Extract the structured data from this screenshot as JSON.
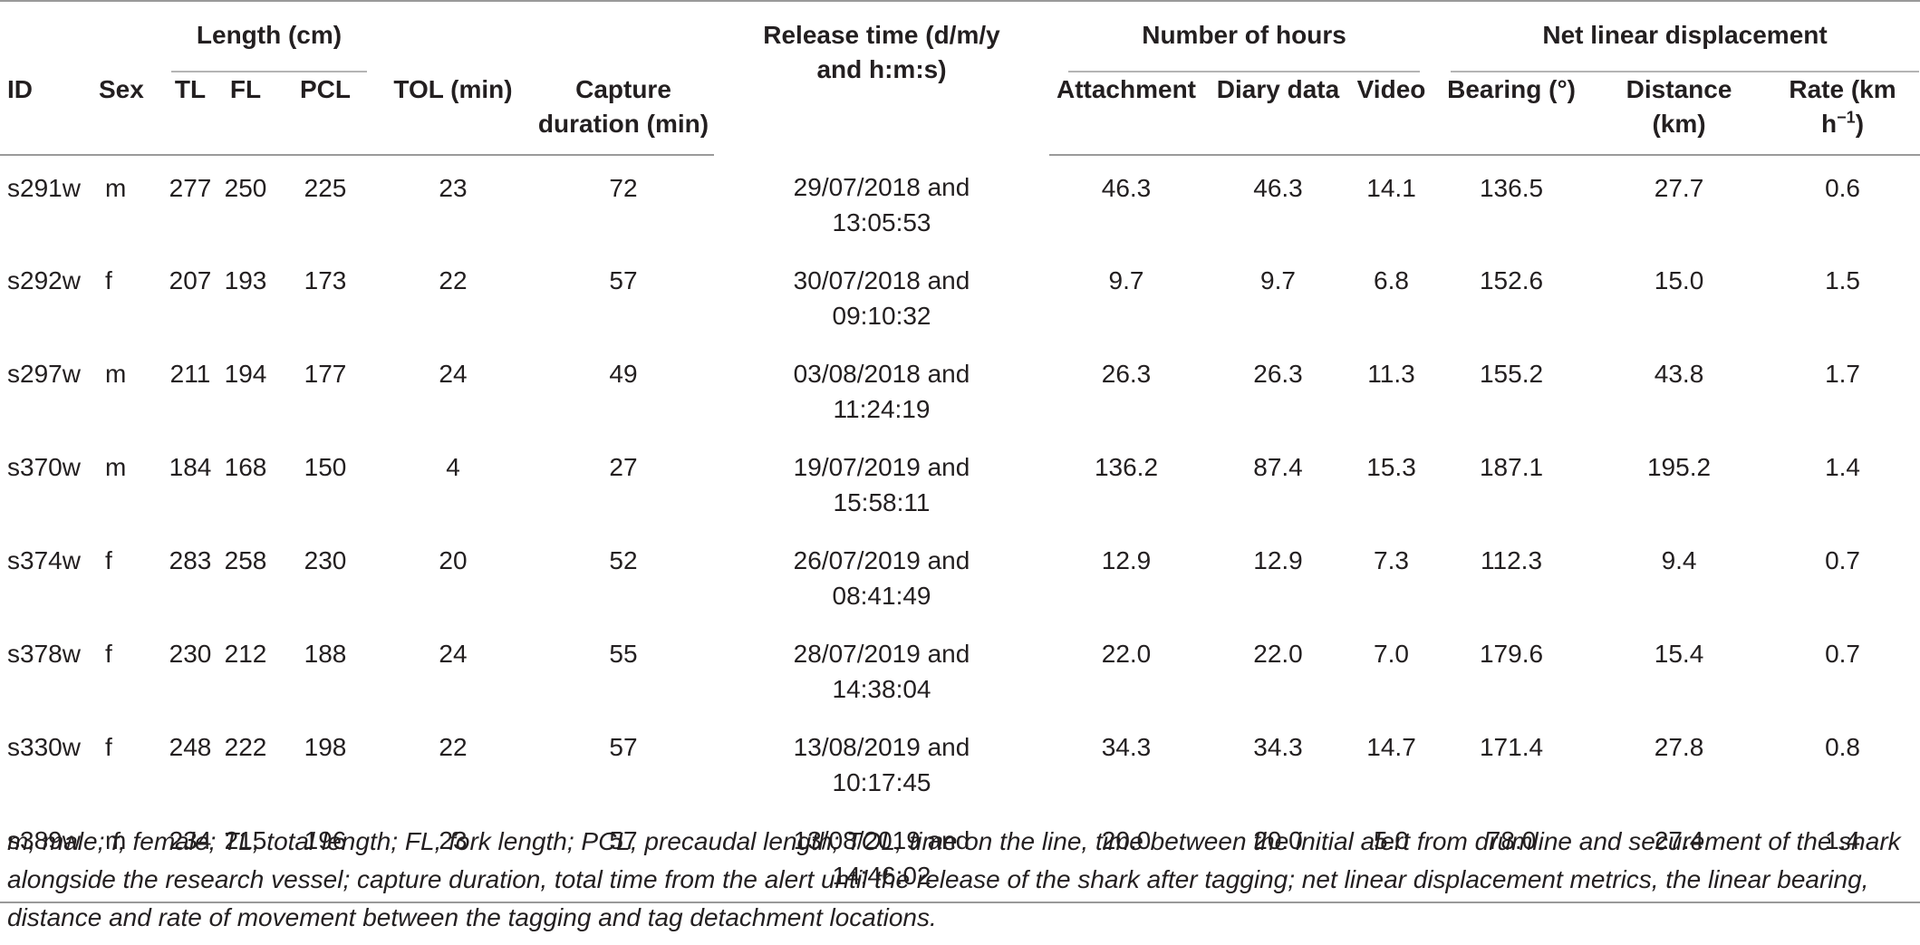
{
  "header": {
    "id": "ID",
    "sex": "Sex",
    "length_group": "Length (cm)",
    "tl": "TL",
    "fl": "FL",
    "pcl": "PCL",
    "tol": "TOL (min)",
    "capture_duration_l1": "Capture",
    "capture_duration_l2": "duration (min)",
    "release_time_l1": "Release time (d/m/y",
    "release_time_l2": "and h:m:s)",
    "hours_group": "Number of hours",
    "attachment": "Attachment",
    "diary": "Diary data",
    "video": "Video",
    "displacement_group": "Net linear displacement",
    "bearing": "Bearing (°)",
    "distance_l1": "Distance",
    "distance_l2": "(km)",
    "rate_l1": "Rate (km",
    "rate_h": "h",
    "rate_exp": "−1",
    "rate_close": ")"
  },
  "rows": [
    {
      "id": "s291w",
      "sex": "m",
      "tl": "277",
      "fl": "250",
      "pcl": "225",
      "tol": "23",
      "capture": "72",
      "release_date": "29/07/2018 and",
      "release_time": "13:05:53",
      "attachment": "46.3",
      "diary": "46.3",
      "video": "14.1",
      "bearing": "136.5",
      "distance": "27.7",
      "rate": "0.6"
    },
    {
      "id": "s292w",
      "sex": "f",
      "tl": "207",
      "fl": "193",
      "pcl": "173",
      "tol": "22",
      "capture": "57",
      "release_date": "30/07/2018 and",
      "release_time": "09:10:32",
      "attachment": "9.7",
      "diary": "9.7",
      "video": "6.8",
      "bearing": "152.6",
      "distance": "15.0",
      "rate": "1.5"
    },
    {
      "id": "s297w",
      "sex": "m",
      "tl": "211",
      "fl": "194",
      "pcl": "177",
      "tol": "24",
      "capture": "49",
      "release_date": "03/08/2018 and",
      "release_time": "11:24:19",
      "attachment": "26.3",
      "diary": "26.3",
      "video": "11.3",
      "bearing": "155.2",
      "distance": "43.8",
      "rate": "1.7"
    },
    {
      "id": "s370w",
      "sex": "m",
      "tl": "184",
      "fl": "168",
      "pcl": "150",
      "tol": "4",
      "capture": "27",
      "release_date": "19/07/2019 and",
      "release_time": "15:58:11",
      "attachment": "136.2",
      "diary": "87.4",
      "video": "15.3",
      "bearing": "187.1",
      "distance": "195.2",
      "rate": "1.4"
    },
    {
      "id": "s374w",
      "sex": "f",
      "tl": "283",
      "fl": "258",
      "pcl": "230",
      "tol": "20",
      "capture": "52",
      "release_date": "26/07/2019 and",
      "release_time": "08:41:49",
      "attachment": "12.9",
      "diary": "12.9",
      "video": "7.3",
      "bearing": "112.3",
      "distance": "9.4",
      "rate": "0.7"
    },
    {
      "id": "s378w",
      "sex": "f",
      "tl": "230",
      "fl": "212",
      "pcl": "188",
      "tol": "24",
      "capture": "55",
      "release_date": "28/07/2019 and",
      "release_time": "14:38:04",
      "attachment": "22.0",
      "diary": "22.0",
      "video": "7.0",
      "bearing": "179.6",
      "distance": "15.4",
      "rate": "0.7"
    },
    {
      "id": "s330w",
      "sex": "f",
      "tl": "248",
      "fl": "222",
      "pcl": "198",
      "tol": "22",
      "capture": "57",
      "release_date": "13/08/2019 and",
      "release_time": "10:17:45",
      "attachment": "34.3",
      "diary": "34.3",
      "video": "14.7",
      "bearing": "171.4",
      "distance": "27.8",
      "rate": "0.8"
    },
    {
      "id": "s389w",
      "sex": "m",
      "tl": "234",
      "fl": "215",
      "pcl": "196",
      "tol": "23",
      "capture": "57",
      "release_date": "13/08/2019 and",
      "release_time": "14:46:02",
      "attachment": "20.0",
      "diary": "20.0",
      "video": "5.0",
      "bearing": "78.0",
      "distance": "27.4",
      "rate": "1.4"
    }
  ],
  "footnote": "m, male; f, female; TL, total length; FL, fork length; PCL, precaudal length; TOL, time on the line, time between the initial alert from drumline and securement of the shark alongside the research vessel; capture duration, total time from the alert until the release of the shark after tagging; net linear displacement metrics, the linear bearing, distance and rate of movement between the tagging and tag detachment locations."
}
